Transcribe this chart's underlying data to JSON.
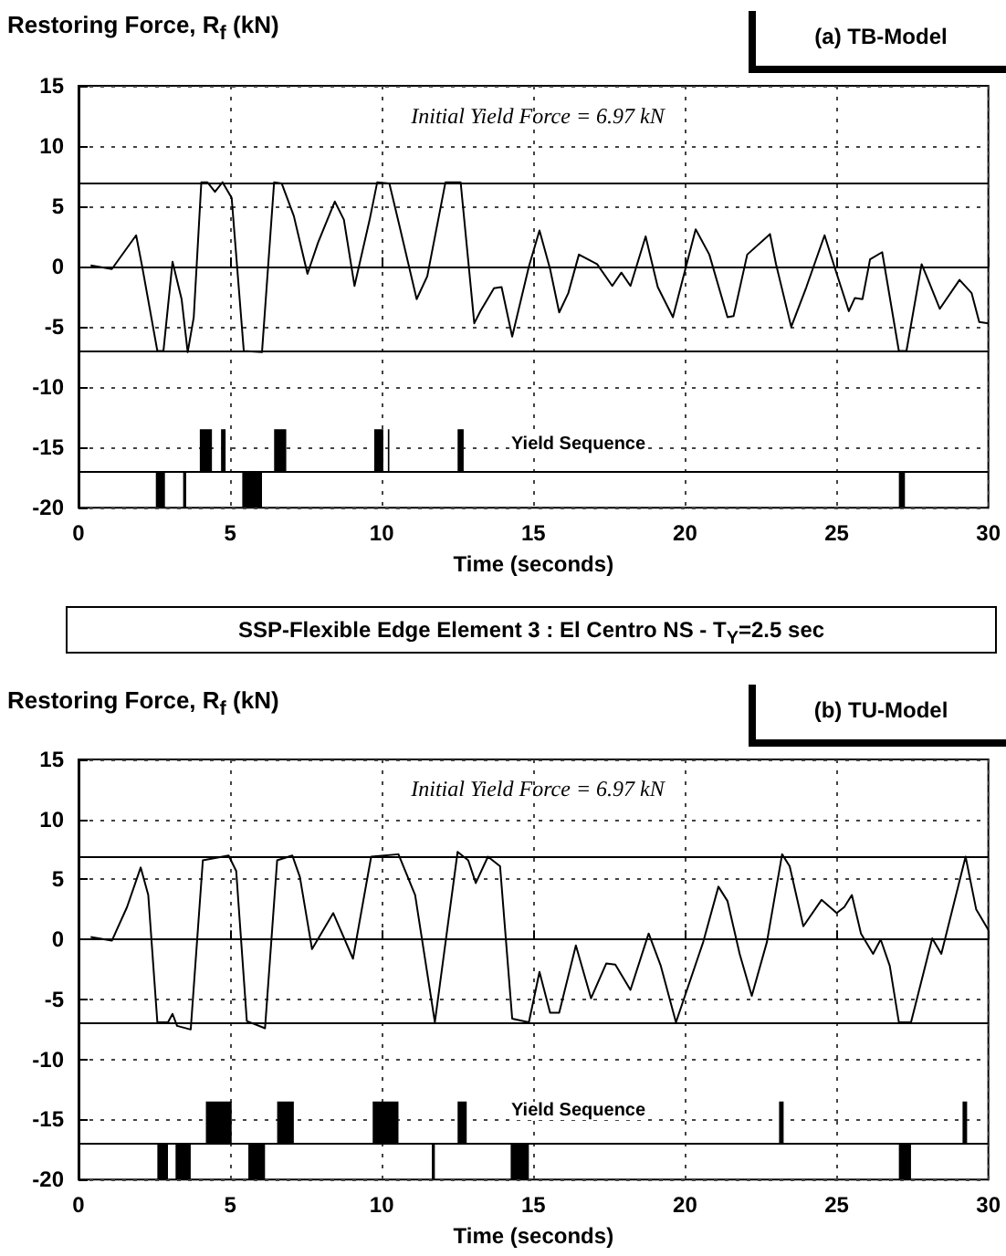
{
  "chart_data": [
    {
      "type": "line",
      "subtitle": "(a) TB-Model",
      "ylabel": "Restoring Force, R$_{f}$ (kN)",
      "xlabel": "Time (seconds)",
      "xlim": [
        0,
        30
      ],
      "xticks": [
        0,
        5,
        10,
        15,
        20,
        25,
        30
      ],
      "ylim": [
        -20,
        15
      ],
      "yticks": [
        -20,
        -15,
        -10,
        -5,
        0,
        5,
        10,
        15
      ],
      "grid": true,
      "marker": "none",
      "annotations": [
        "Initial Yield Force = 6.97 kN",
        "Yield Sequence"
      ],
      "ref_lines": [
        {
          "axis": "y",
          "value": 6.97,
          "color": "#000000"
        },
        {
          "axis": "y",
          "value": 0,
          "color": "#000000"
        },
        {
          "axis": "y",
          "value": -6.97,
          "color": "#000000"
        },
        {
          "axis": "y",
          "value": -17,
          "color": "#000000"
        }
      ],
      "series": [
        {
          "type": "line",
          "color": "#000000",
          "x": [
            0.4,
            1.1,
            1.9,
            2.1,
            2.6,
            2.8,
            3.1,
            3.4,
            3.6,
            3.8,
            4.05,
            4.25,
            4.5,
            4.75,
            5.05,
            5.45,
            6.05,
            6.45,
            6.7,
            7.1,
            7.55,
            7.9,
            8.45,
            8.75,
            9.1,
            9.6,
            9.85,
            10.25,
            10.6,
            11.15,
            11.5,
            12.1,
            12.6,
            13.05,
            13.25,
            13.7,
            13.95,
            14.3,
            14.85,
            15.2,
            15.55,
            15.85,
            16.15,
            16.5,
            17.1,
            17.6,
            17.9,
            18.2,
            18.7,
            19.1,
            19.6,
            20.35,
            20.8,
            21.4,
            21.6,
            22.05,
            22.8,
            23,
            23.5,
            24,
            24.6,
            24.9,
            25.4,
            25.6,
            25.85,
            26.1,
            26.5,
            27.05,
            27.3,
            27.8,
            28,
            28.4,
            29.05,
            29.45,
            29.7,
            30
          ],
          "values": [
            0.1,
            -0.2,
            2.6,
            0,
            -7,
            -7,
            0.4,
            -2.7,
            -7.1,
            -4.2,
            7,
            7,
            6.2,
            7,
            5.7,
            -7,
            -7.1,
            7,
            6.9,
            4.2,
            -0.6,
            2,
            5.4,
            3.9,
            -1.6,
            3.9,
            7,
            6.9,
            3.2,
            -2.7,
            -0.8,
            7,
            7,
            -4.7,
            -3.7,
            -1.8,
            -1.7,
            -5.8,
            0,
            3,
            -0.2,
            -3.8,
            -2.2,
            1,
            0.2,
            -1.6,
            -0.5,
            -1.6,
            2.5,
            -1.7,
            -4.2,
            3.1,
            1,
            -4.2,
            -4.1,
            1,
            2.7,
            0.2,
            -5,
            -1.7,
            2.6,
            0.2,
            -3.7,
            -2.6,
            -2.7,
            0.6,
            1.2,
            -7,
            -7,
            0.2,
            -1,
            -3.5,
            -1.1,
            -2.2,
            -4.6,
            -4.7
          ]
        },
        {
          "type": "area",
          "color": "#000000",
          "x": [
            4,
            4,
            4.4,
            4.4,
            4.7,
            4.7,
            4.85,
            4.85,
            6.45,
            6.45,
            6.85,
            6.85,
            9.75,
            9.75,
            10.05,
            10.05,
            10.2,
            10.2,
            10.25,
            10.25,
            12.5,
            12.5,
            12.7,
            12.7
          ],
          "values": [
            -17,
            -13.5,
            -13.5,
            -17,
            -17,
            -13.5,
            -13.5,
            -17,
            -17,
            -13.5,
            -13.5,
            -17,
            -17,
            -13.5,
            -13.5,
            -17,
            -17,
            -13.5,
            -13.5,
            -17,
            -17,
            -13.5,
            -13.5,
            -17
          ]
        },
        {
          "type": "area",
          "color": "#000000",
          "x": [
            2.55,
            2.55,
            2.85,
            2.85,
            3.45,
            3.45,
            3.55,
            3.55,
            5.4,
            5.4,
            6.05,
            6.05,
            27.05,
            27.05,
            27.25,
            27.25
          ],
          "values": [
            -20,
            -17,
            -17,
            -20,
            -20,
            -17,
            -17,
            -20,
            -20,
            -17,
            -17,
            -20,
            -20,
            -17,
            -17,
            -20
          ]
        }
      ]
    },
    {
      "type": "line",
      "title": "SSP-Flexible Edge Element 3 : El Centro NS - T$_{Y}$=2.5 sec",
      "subtitle": "(b) TU-Model",
      "ylabel": "Restoring Force, R$_{f}$ (kN)",
      "xlabel": "Time (seconds)",
      "xlim": [
        0,
        30
      ],
      "xticks": [
        0,
        5,
        10,
        15,
        20,
        25,
        30
      ],
      "ylim": [
        -20,
        15
      ],
      "yticks": [
        -20,
        -15,
        -10,
        -5,
        0,
        5,
        10,
        15
      ],
      "grid": true,
      "marker": "none",
      "annotations": [
        "Initial Yield Force = 6.97 kN",
        "Yield Sequence"
      ],
      "ref_lines": [
        {
          "axis": "y",
          "value": 6.97,
          "color": "#000000"
        },
        {
          "axis": "y",
          "value": 0,
          "color": "#000000"
        },
        {
          "axis": "y",
          "value": -6.97,
          "color": "#000000"
        },
        {
          "axis": "y",
          "value": -17,
          "color": "#000000"
        }
      ],
      "series": [
        {
          "type": "line",
          "color": "#000000",
          "x": [
            0.4,
            1.1,
            1.6,
            2.05,
            2.3,
            2.6,
            2.95,
            3.1,
            3.25,
            3.7,
            4.1,
            4.95,
            5.2,
            5.55,
            6.15,
            6.55,
            7.05,
            7.3,
            7.7,
            8.4,
            9.05,
            9.65,
            10.55,
            11.1,
            11.75,
            12.5,
            12.85,
            13.1,
            13.5,
            13.9,
            14.3,
            14.85,
            15.2,
            15.55,
            15.85,
            16.4,
            16.9,
            17.4,
            17.7,
            18.2,
            18.8,
            19.2,
            19.7,
            20.6,
            21.1,
            21.4,
            21.8,
            22.2,
            22.7,
            23.2,
            23.45,
            23.9,
            24.5,
            25,
            25.25,
            25.5,
            25.8,
            26.2,
            26.45,
            26.75,
            27.05,
            27.45,
            28.15,
            28.45,
            29.25,
            29.6,
            30
          ],
          "values": [
            0.2,
            -0.1,
            2.7,
            6,
            3.7,
            -6.9,
            -6.9,
            -6.2,
            -7.2,
            -7.5,
            6.6,
            7,
            5.7,
            -6.8,
            -7.4,
            6.6,
            7,
            5.2,
            -0.8,
            2.2,
            -1.6,
            6.9,
            7.1,
            3.7,
            -6.9,
            7.3,
            6.6,
            4.7,
            6.9,
            6.1,
            -6.6,
            -6.9,
            -2.7,
            -6.1,
            -6.1,
            -0.5,
            -4.9,
            -2,
            -2.1,
            -4.2,
            0.5,
            -2.2,
            -6.9,
            -0.2,
            4.4,
            3.2,
            -1.2,
            -4.7,
            -0.2,
            7.1,
            6.1,
            1.1,
            3.3,
            2.2,
            2.7,
            3.7,
            0.5,
            -1.2,
            0,
            -2.2,
            -6.9,
            -6.9,
            0.1,
            -1.2,
            6.9,
            2.5,
            0.8
          ]
        },
        {
          "type": "area",
          "color": "#000000",
          "x": [
            4.2,
            4.2,
            5.05,
            5.05,
            6.55,
            6.55,
            7.1,
            7.1,
            9.7,
            9.7,
            10.55,
            10.55,
            12.5,
            12.5,
            12.8,
            12.8,
            23.1,
            23.1,
            23.25,
            23.25,
            29.15,
            29.15,
            29.3,
            29.3
          ],
          "values": [
            -17,
            -13.5,
            -13.5,
            -17,
            -17,
            -13.5,
            -13.5,
            -17,
            -17,
            -13.5,
            -13.5,
            -17,
            -17,
            -13.5,
            -13.5,
            -17,
            -17,
            -13.5,
            -13.5,
            -17,
            -17,
            -13.5,
            -13.5,
            -17
          ]
        },
        {
          "type": "area",
          "color": "#000000",
          "x": [
            2.6,
            2.6,
            2.95,
            2.95,
            3.2,
            3.2,
            3.7,
            3.7,
            5.6,
            5.6,
            6.15,
            6.15,
            11.65,
            11.65,
            11.75,
            11.75,
            14.25,
            14.25,
            14.85,
            14.85,
            27.05,
            27.05,
            27.45,
            27.45
          ],
          "values": [
            -20,
            -17,
            -17,
            -20,
            -20,
            -17,
            -17,
            -20,
            -20,
            -17,
            -17,
            -20,
            -20,
            -17,
            -17,
            -20,
            -20,
            -17,
            -17,
            -20,
            -20,
            -17,
            -17,
            -20
          ]
        }
      ]
    }
  ]
}
